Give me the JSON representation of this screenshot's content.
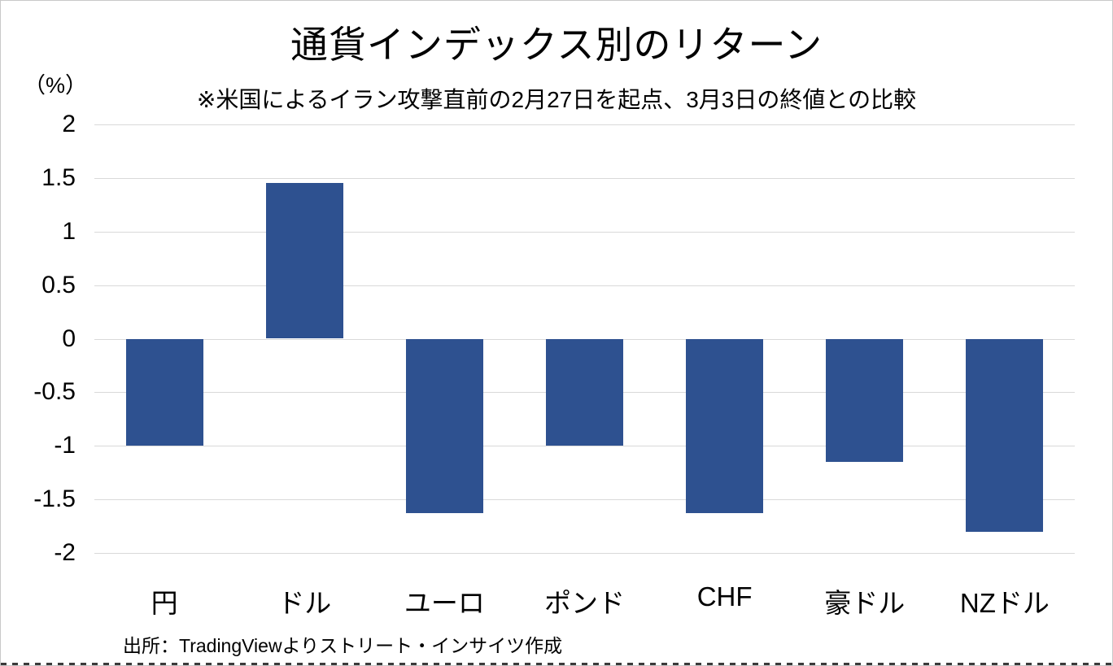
{
  "chart_data": {
    "type": "bar",
    "title": "通貨インデックス別のリターン",
    "subtitle": "※米国によるイラン攻撃直前の2月27日を起点、3月3日の終値との比較",
    "unit_label": "（%）",
    "categories": [
      "円",
      "ドル",
      "ユーロ",
      "ポンド",
      "CHF",
      "豪ドル",
      "NZドル"
    ],
    "values": [
      -1.0,
      1.45,
      -1.63,
      -1.0,
      -1.63,
      -1.15,
      -1.8
    ],
    "yticks": [
      2,
      1.5,
      1,
      0.5,
      0,
      -0.5,
      -1,
      -1.5,
      -2
    ],
    "ylim": [
      -2,
      2
    ],
    "grid": true,
    "legend": false,
    "source": "出所：TradingViewよりストリート・インサイツ作成",
    "colors": {
      "bar": "#2e5190",
      "gridline": "#d9d9d9"
    }
  }
}
